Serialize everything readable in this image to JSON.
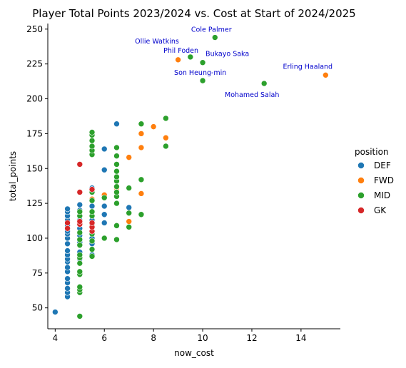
{
  "chart_data": {
    "type": "scatter",
    "title": "Player Total Points 2023/2024 vs. Cost at Start of 2024/2025",
    "xlabel": "now_cost",
    "ylabel": "total_points",
    "xlim": [
      3.7,
      15.6
    ],
    "ylim": [
      35,
      254
    ],
    "x_ticks": [
      4,
      6,
      8,
      10,
      12,
      14
    ],
    "y_ticks": [
      50,
      75,
      100,
      125,
      150,
      175,
      200,
      225,
      250
    ],
    "grid": false,
    "legend": {
      "title": "position",
      "placement": "right",
      "entries": [
        "DEF",
        "FWD",
        "MID",
        "GK"
      ]
    },
    "colors": {
      "DEF": "#1f77b4",
      "FWD": "#ff7f0e",
      "MID": "#2ca02c",
      "GK": "#d62728",
      "annotation": "#0000cc"
    },
    "series": [
      {
        "name": "DEF",
        "points": [
          [
            4.0,
            47
          ],
          [
            4.5,
            58
          ],
          [
            4.5,
            61
          ],
          [
            4.5,
            64
          ],
          [
            4.5,
            68
          ],
          [
            4.5,
            71
          ],
          [
            4.5,
            76
          ],
          [
            4.5,
            79
          ],
          [
            4.5,
            83
          ],
          [
            4.5,
            85
          ],
          [
            4.5,
            88
          ],
          [
            4.5,
            91
          ],
          [
            4.5,
            96
          ],
          [
            4.5,
            100
          ],
          [
            4.5,
            103
          ],
          [
            4.5,
            105
          ],
          [
            4.5,
            109
          ],
          [
            4.5,
            113
          ],
          [
            4.5,
            116
          ],
          [
            4.5,
            119
          ],
          [
            4.5,
            121
          ],
          [
            5.0,
            85
          ],
          [
            5.0,
            90
          ],
          [
            5.0,
            97
          ],
          [
            5.0,
            102
          ],
          [
            5.0,
            107
          ],
          [
            5.0,
            113
          ],
          [
            5.0,
            120
          ],
          [
            5.0,
            124
          ],
          [
            5.5,
            88
          ],
          [
            5.5,
            96
          ],
          [
            5.5,
            100
          ],
          [
            5.5,
            113
          ],
          [
            5.5,
            123
          ],
          [
            5.5,
            136
          ],
          [
            6.0,
            111
          ],
          [
            6.0,
            117
          ],
          [
            6.0,
            123
          ],
          [
            6.0,
            149
          ],
          [
            6.0,
            164
          ],
          [
            6.5,
            182
          ],
          [
            7.0,
            122
          ]
        ]
      },
      {
        "name": "FWD",
        "points": [
          [
            5.5,
            128
          ],
          [
            6.0,
            131
          ],
          [
            6.5,
            136
          ],
          [
            7.0,
            112
          ],
          [
            7.0,
            158
          ],
          [
            7.5,
            132
          ],
          [
            7.5,
            165
          ],
          [
            7.5,
            175
          ],
          [
            8.0,
            180
          ],
          [
            8.5,
            172
          ],
          [
            9.0,
            228
          ],
          [
            15.0,
            217
          ]
        ]
      },
      {
        "name": "MID",
        "points": [
          [
            5.0,
            44
          ],
          [
            5.0,
            61
          ],
          [
            5.0,
            63
          ],
          [
            5.0,
            65
          ],
          [
            5.0,
            74
          ],
          [
            5.0,
            76
          ],
          [
            5.0,
            82
          ],
          [
            5.0,
            86
          ],
          [
            5.0,
            88
          ],
          [
            5.0,
            95
          ],
          [
            5.0,
            99
          ],
          [
            5.0,
            104
          ],
          [
            5.0,
            110
          ],
          [
            5.0,
            116
          ],
          [
            5.0,
            119
          ],
          [
            5.5,
            87
          ],
          [
            5.5,
            92
          ],
          [
            5.5,
            98
          ],
          [
            5.5,
            103
          ],
          [
            5.5,
            110
          ],
          [
            5.5,
            116
          ],
          [
            5.5,
            119
          ],
          [
            5.5,
            127
          ],
          [
            5.5,
            133
          ],
          [
            5.5,
            160
          ],
          [
            5.5,
            163
          ],
          [
            5.5,
            166
          ],
          [
            5.5,
            170
          ],
          [
            5.5,
            174
          ],
          [
            5.5,
            176
          ],
          [
            6.0,
            100
          ],
          [
            6.0,
            129
          ],
          [
            6.5,
            99
          ],
          [
            6.5,
            109
          ],
          [
            6.5,
            125
          ],
          [
            6.5,
            130
          ],
          [
            6.5,
            133
          ],
          [
            6.5,
            137
          ],
          [
            6.5,
            141
          ],
          [
            6.5,
            144
          ],
          [
            6.5,
            148
          ],
          [
            6.5,
            153
          ],
          [
            6.5,
            159
          ],
          [
            6.5,
            165
          ],
          [
            7.0,
            108
          ],
          [
            7.0,
            118
          ],
          [
            7.0,
            136
          ],
          [
            7.5,
            117
          ],
          [
            7.5,
            142
          ],
          [
            7.5,
            182
          ],
          [
            8.5,
            166
          ],
          [
            8.5,
            186
          ],
          [
            9.5,
            230
          ],
          [
            10.0,
            213
          ],
          [
            10.0,
            226
          ],
          [
            10.5,
            244
          ],
          [
            12.5,
            211
          ]
        ]
      },
      {
        "name": "GK",
        "points": [
          [
            4.5,
            107
          ],
          [
            4.5,
            111
          ],
          [
            5.0,
            110
          ],
          [
            5.0,
            112
          ],
          [
            5.0,
            133
          ],
          [
            5.0,
            153
          ],
          [
            5.5,
            105
          ],
          [
            5.5,
            108
          ],
          [
            5.5,
            111
          ],
          [
            5.5,
            135
          ]
        ]
      }
    ],
    "annotations": [
      {
        "text": "Cole Palmer",
        "x": 10.5,
        "y": 244
      },
      {
        "text": "Phil Foden",
        "x": 9.0,
        "y": 228
      },
      {
        "text": "Bukayo Saka",
        "x": 10.0,
        "y": 226
      },
      {
        "text": "Erling Haaland",
        "x": 15.0,
        "y": 217
      },
      {
        "text": "Ollie Watkins",
        "x": 9.5,
        "y": 230
      },
      {
        "text": "Son Heung-min",
        "x": 10.0,
        "y": 213
      },
      {
        "text": "Mohamed Salah",
        "x": 12.5,
        "y": 211
      }
    ]
  }
}
